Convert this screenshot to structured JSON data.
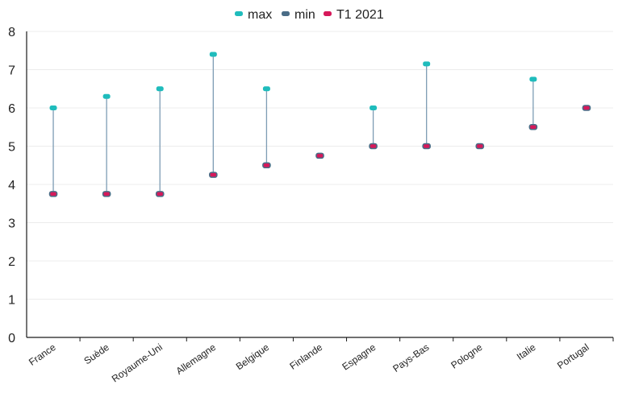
{
  "chart_data": {
    "type": "scatter",
    "subtype": "min-max range with current value",
    "categories": [
      "France",
      "Suède",
      "Royaume-Uni",
      "Allemagne",
      "Belgique",
      "Finlande",
      "Espagne",
      "Pays-Bas",
      "Pologne",
      "Italie",
      "Portugal"
    ],
    "series": [
      {
        "name": "max",
        "color": "#1fbcbc",
        "values": [
          6.0,
          6.3,
          6.5,
          7.4,
          6.5,
          4.75,
          6.0,
          7.15,
          5.0,
          6.75,
          6.0
        ]
      },
      {
        "name": "min",
        "color": "#4a6c86",
        "values": [
          3.75,
          3.75,
          3.75,
          4.25,
          4.5,
          4.75,
          5.0,
          5.0,
          5.0,
          5.5,
          6.0
        ]
      },
      {
        "name": "T1 2021",
        "color": "#d6195a",
        "values": [
          3.75,
          3.75,
          3.75,
          4.25,
          4.5,
          4.75,
          5.0,
          5.0,
          5.0,
          5.5,
          6.0
        ]
      }
    ],
    "range_line_color": "#7d9cb4",
    "title": "",
    "xlabel": "",
    "ylabel": "",
    "ylim": [
      0,
      8
    ],
    "yticks": [
      0,
      1,
      2,
      3,
      4,
      5,
      6,
      7,
      8
    ],
    "grid": true,
    "legend_position": "top"
  }
}
